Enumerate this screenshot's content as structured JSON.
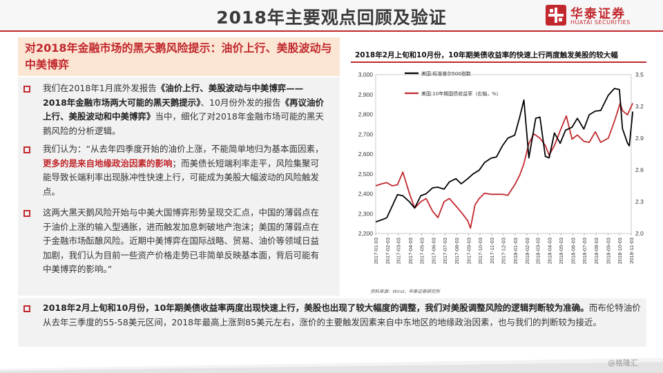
{
  "header": {
    "title": "2018年主要观点回顾及验证",
    "logo_cn": "华泰证券",
    "logo_en": "HUATAI SECURITIES"
  },
  "headline": "对2018年金融市场的黑天鹅风险提示：油价上行、美股波动与中美博弈",
  "bullets": [
    {
      "segments": [
        {
          "t": "我们在2018年1月底外发报告",
          "s": "n"
        },
        {
          "t": "《油价上行、美股波动与中美博弈——2018年金融市场两大可能的黑天鹅提示》",
          "s": "b"
        },
        {
          "t": "、10月份外发的报告",
          "s": "n"
        },
        {
          "t": "《再议油价上行、美股波动和中美博弈》",
          "s": "b"
        },
        {
          "t": "当中，细化了对2018年金融市场可能的黑天鹅风险的分析逻辑。",
          "s": "n"
        }
      ]
    },
    {
      "segments": [
        {
          "t": "我们认为：“从去年四季度开始的油价上涨，不能简单地归为基本面因素，",
          "s": "n"
        },
        {
          "t": "更多的是来自地缘政治因素的影响",
          "s": "r"
        },
        {
          "t": "；而美债长短端利率走平，风险集聚可能导致长端利率出现脉冲性快速上行，可能成为美股大幅波动的风险触发点。",
          "s": "n"
        }
      ]
    },
    {
      "segments": [
        {
          "t": "这两大黑天鹅风险开始与中美大国博弈形势呈现交汇点，中国的薄弱点在于油价上涨的输入型通胀，进而触发加息刺破地产泡沫；美国的薄弱点在于金融市场酝酿风险。近期中美博弈在国际战略、贸易、油价等领域日益加剧，我们认为目前一些资产价格走势已非简单反映基本面，背后可能有中美博弈的影响。”",
          "s": "n"
        }
      ]
    }
  ],
  "bottom": {
    "segments": [
      {
        "t": "2018年2月上旬和10月份，10年期美债收益率两度出现快速上行，美股也出现了较大幅度的调整，我们对美股调整风险的逻辑判断较为准确。",
        "s": "b"
      },
      {
        "t": "而布伦特油价从去年三季度的55-58美元区间，2018年最高上涨到85美元左右，涨价的主要触发因素来自中东地区的地缘政治因素，也与我们的判断较为接近。",
        "s": "n"
      }
    ]
  },
  "chart_title": "2018年2月上旬和10月份，10年期美债收益率的快速上行两度触发美股的较大幅",
  "chart_source": "资料来源：Wind，华泰证券研究所",
  "watermark": "@格隆汇",
  "colors": {
    "accent": "#c1272d",
    "series_black": "#000000",
    "series_red": "#c1272d"
  },
  "chart_data": {
    "type": "line",
    "legend": [
      "美国:标准普尔500指数",
      "美国:10年期国债收益率（右轴，%）"
    ],
    "x_ticks": [
      "2017-01-03",
      "2017-02-03",
      "2017-03-03",
      "2017-04-03",
      "2017-05-03",
      "2017-06-03",
      "2017-07-03",
      "2017-08-03",
      "2017-09-03",
      "2017-10-03",
      "2017-11-03",
      "2017-12-03",
      "2018-01-03",
      "2018-02-03",
      "2018-03-03",
      "2018-04-03",
      "2018-05-03",
      "2018-06-03",
      "2018-07-03",
      "2018-08-03",
      "2018-09-03",
      "2018-10-03",
      "2018-11-03"
    ],
    "y_left": {
      "min": 2200,
      "max": 3000,
      "ticks": [
        "2,200",
        "2,300",
        "2,400",
        "2,500",
        "2,600",
        "2,700",
        "2,800",
        "2,900",
        "3,000"
      ]
    },
    "y_right": {
      "min": 2.0,
      "max": 3.5,
      "ticks": [
        "2.0",
        "2.3",
        "2.6",
        "2.9",
        "3.2",
        "3.5"
      ]
    },
    "series": [
      {
        "name": "美国:标准普尔500指数",
        "axis": "left",
        "x": [
          "2017-01-03",
          "2017-01-20",
          "2017-02-01",
          "2017-02-15",
          "2017-03-01",
          "2017-03-15",
          "2017-04-01",
          "2017-04-15",
          "2017-05-01",
          "2017-05-15",
          "2017-06-01",
          "2017-06-15",
          "2017-07-01",
          "2017-07-15",
          "2017-08-01",
          "2017-08-15",
          "2017-09-01",
          "2017-09-15",
          "2017-10-01",
          "2017-10-15",
          "2017-11-01",
          "2017-11-15",
          "2017-12-01",
          "2017-12-15",
          "2018-01-02",
          "2018-01-15",
          "2018-01-26",
          "2018-02-08",
          "2018-02-26",
          "2018-03-09",
          "2018-03-23",
          "2018-04-02",
          "2018-04-16",
          "2018-05-01",
          "2018-05-15",
          "2018-06-01",
          "2018-06-15",
          "2018-07-02",
          "2018-07-16",
          "2018-08-01",
          "2018-08-15",
          "2018-09-04",
          "2018-09-20",
          "2018-10-03",
          "2018-10-11",
          "2018-10-24",
          "2018-10-29",
          "2018-11-07"
        ],
        "values": [
          2258,
          2270,
          2279,
          2337,
          2396,
          2390,
          2360,
          2328,
          2390,
          2400,
          2430,
          2433,
          2423,
          2460,
          2476,
          2450,
          2476,
          2500,
          2519,
          2557,
          2579,
          2585,
          2642,
          2680,
          2695,
          2786,
          2872,
          2581,
          2780,
          2786,
          2588,
          2581,
          2706,
          2654,
          2720,
          2735,
          2780,
          2726,
          2798,
          2816,
          2819,
          2896,
          2930,
          2925,
          2728,
          2656,
          2641,
          2814
        ]
      },
      {
        "name": "美国:10年期国债收益率（右轴，%）",
        "axis": "right",
        "x": [
          "2017-01-03",
          "2017-01-20",
          "2017-02-01",
          "2017-02-15",
          "2017-03-01",
          "2017-03-15",
          "2017-04-01",
          "2017-04-15",
          "2017-05-01",
          "2017-05-15",
          "2017-06-01",
          "2017-06-15",
          "2017-07-01",
          "2017-07-15",
          "2017-08-01",
          "2017-08-15",
          "2017-09-01",
          "2017-09-08",
          "2017-09-20",
          "2017-10-01",
          "2017-10-15",
          "2017-11-01",
          "2017-11-15",
          "2017-12-01",
          "2017-12-15",
          "2018-01-02",
          "2018-01-15",
          "2018-01-26",
          "2018-02-08",
          "2018-02-21",
          "2018-03-09",
          "2018-03-23",
          "2018-04-02",
          "2018-04-16",
          "2018-05-01",
          "2018-05-17",
          "2018-06-01",
          "2018-06-15",
          "2018-07-02",
          "2018-07-16",
          "2018-08-01",
          "2018-08-15",
          "2018-09-04",
          "2018-09-20",
          "2018-10-05",
          "2018-10-11",
          "2018-10-24",
          "2018-11-07"
        ],
        "values": [
          2.45,
          2.47,
          2.48,
          2.45,
          2.46,
          2.58,
          2.38,
          2.24,
          2.3,
          2.33,
          2.21,
          2.15,
          2.3,
          2.33,
          2.26,
          2.2,
          2.12,
          2.05,
          2.27,
          2.33,
          2.38,
          2.37,
          2.37,
          2.37,
          2.36,
          2.46,
          2.55,
          2.66,
          2.85,
          2.94,
          2.9,
          2.83,
          2.74,
          2.83,
          2.97,
          3.11,
          2.89,
          2.93,
          2.87,
          2.86,
          2.96,
          2.86,
          2.9,
          3.06,
          3.23,
          3.16,
          3.12,
          3.23
        ]
      }
    ]
  }
}
